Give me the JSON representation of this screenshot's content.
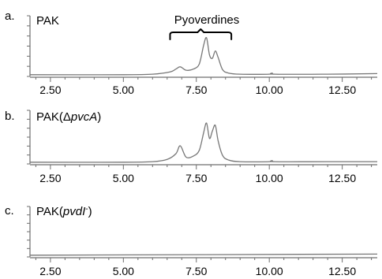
{
  "chart_data": [
    {
      "type": "line",
      "panel_letter": "a.",
      "title": "PAK",
      "title_italic": "",
      "title_suffix": "",
      "xlim": [
        1.8,
        13.7
      ],
      "ylim": [
        0,
        1
      ],
      "xticks": [
        "2.50",
        "5.00",
        "7.50",
        "10.00",
        "12.50"
      ],
      "xtick_values": [
        2.5,
        5.0,
        7.5,
        10.0,
        12.5
      ],
      "annotation": {
        "text": "Pyoverdines",
        "x_start": 6.6,
        "x_end": 8.7
      },
      "series": [
        {
          "x": [
            1.8,
            5.0,
            6.0,
            6.6,
            6.8,
            6.95,
            7.15,
            7.4,
            7.6,
            7.75,
            7.85,
            7.95,
            8.05,
            8.15,
            8.25,
            8.4,
            8.6,
            9.0,
            10.0,
            10.1,
            10.2,
            12.0,
            13.7
          ],
          "y": [
            0.03,
            0.03,
            0.04,
            0.08,
            0.13,
            0.17,
            0.11,
            0.13,
            0.22,
            0.55,
            0.68,
            0.38,
            0.32,
            0.45,
            0.33,
            0.12,
            0.06,
            0.04,
            0.04,
            0.06,
            0.04,
            0.04,
            0.05
          ]
        }
      ]
    },
    {
      "type": "line",
      "panel_letter": "b.",
      "title": "PAK(Δ",
      "title_italic": "pvcA",
      "title_suffix": ")",
      "xlim": [
        1.8,
        13.7
      ],
      "ylim": [
        0,
        1
      ],
      "xticks": [
        "2.50",
        "5.00",
        "7.50",
        "10.00",
        "12.50"
      ],
      "xtick_values": [
        2.5,
        5.0,
        7.5,
        10.0,
        12.5
      ],
      "series": [
        {
          "x": [
            1.8,
            5.0,
            6.0,
            6.5,
            6.8,
            6.95,
            7.15,
            7.4,
            7.6,
            7.75,
            7.85,
            7.95,
            8.05,
            8.15,
            8.25,
            8.4,
            8.6,
            9.0,
            10.0,
            10.1,
            10.2,
            12.0,
            13.7
          ],
          "y": [
            0.03,
            0.03,
            0.04,
            0.08,
            0.18,
            0.32,
            0.12,
            0.14,
            0.24,
            0.55,
            0.72,
            0.45,
            0.58,
            0.68,
            0.4,
            0.15,
            0.07,
            0.04,
            0.04,
            0.06,
            0.04,
            0.04,
            0.04
          ]
        }
      ]
    },
    {
      "type": "line",
      "panel_letter": "c.",
      "title": "PAK(",
      "title_italic": "pvdI",
      "title_sup": "-",
      "title_suffix": ")",
      "xlim": [
        1.8,
        13.7
      ],
      "ylim": [
        0,
        1
      ],
      "xticks": [
        "2.50",
        "5.00",
        "7.50",
        "10.00",
        "12.50"
      ],
      "xtick_values": [
        2.5,
        5.0,
        7.5,
        10.0,
        12.5
      ],
      "series": [
        {
          "x": [
            1.8,
            13.7
          ],
          "y": [
            0.03,
            0.05
          ]
        }
      ]
    }
  ]
}
